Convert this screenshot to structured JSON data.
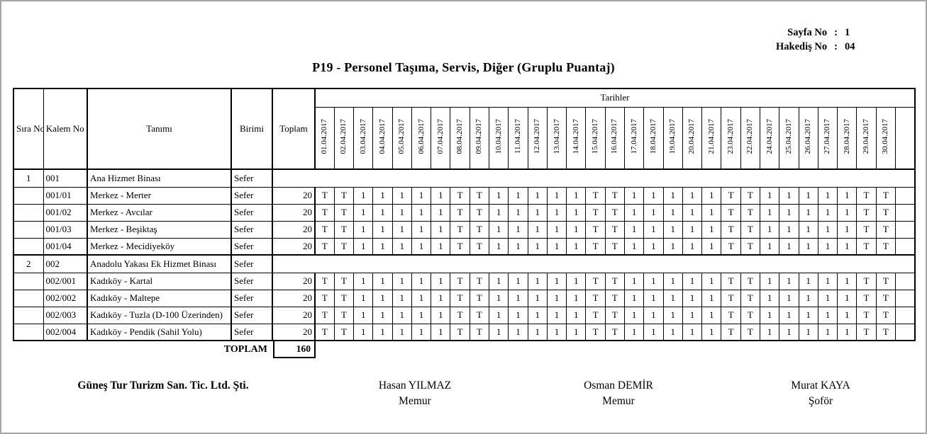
{
  "meta": {
    "sayfa_label": "Sayfa No",
    "hakedis_label": "Hakediş No",
    "separator": ":",
    "sayfa_value": "1",
    "hakedis_value": "04"
  },
  "title": "P19 - Personel Taşıma, Servis, Diğer (Gruplu Puantaj)",
  "table": {
    "headers": {
      "sira": "Sıra No",
      "kalem": "Kalem No",
      "tanim": "Tanımı",
      "birim": "Birimi",
      "toplam": "Toplam",
      "tarihler": "Tarihler"
    },
    "dates": [
      "01.04.2017",
      "02.04.2017",
      "03.04.2017",
      "04.04.2017",
      "05.04.2017",
      "06.04.2017",
      "07.04.2017",
      "08.04.2017",
      "09.04.2017",
      "10.04.2017",
      "11.04.2017",
      "12.04.2017",
      "13.04.2017",
      "14.04.2017",
      "15.04.2017",
      "16.04.2017",
      "17.04.2017",
      "18.04.2017",
      "19.04.2017",
      "20.04.2017",
      "21.04.2017",
      "23.04.2017",
      "22.04.2017",
      "24.04.2017",
      "25.04.2017",
      "26.04.2017",
      "27.04.2017",
      "28.04.2017",
      "29.04.2017",
      "30.04.2017"
    ],
    "empty_trailing_columns": 1,
    "rows": [
      {
        "group": true,
        "sira": "1",
        "kalem": "001",
        "tanim": "Ana Hizmet Binası",
        "birim": "Sefer",
        "toplam": ""
      },
      {
        "group": false,
        "sira": "",
        "kalem": "001/01",
        "tanim": "Merkez - Merter",
        "birim": "Sefer",
        "toplam": "20",
        "values": [
          "T",
          "T",
          "1",
          "1",
          "1",
          "1",
          "1",
          "T",
          "T",
          "1",
          "1",
          "1",
          "1",
          "1",
          "T",
          "T",
          "1",
          "1",
          "1",
          "1",
          "1",
          "T",
          "T",
          "1",
          "1",
          "1",
          "1",
          "1",
          "T",
          "T"
        ]
      },
      {
        "group": false,
        "sira": "",
        "kalem": "001/02",
        "tanim": "Merkez - Avcılar",
        "birim": "Sefer",
        "toplam": "20",
        "values": [
          "T",
          "T",
          "1",
          "1",
          "1",
          "1",
          "1",
          "T",
          "T",
          "1",
          "1",
          "1",
          "1",
          "1",
          "T",
          "T",
          "1",
          "1",
          "1",
          "1",
          "1",
          "T",
          "T",
          "1",
          "1",
          "1",
          "1",
          "1",
          "T",
          "T"
        ]
      },
      {
        "group": false,
        "sira": "",
        "kalem": "001/03",
        "tanim": "Merkez - Beşiktaş",
        "birim": "Sefer",
        "toplam": "20",
        "values": [
          "T",
          "T",
          "1",
          "1",
          "1",
          "1",
          "1",
          "T",
          "T",
          "1",
          "1",
          "1",
          "1",
          "1",
          "T",
          "T",
          "1",
          "1",
          "1",
          "1",
          "1",
          "T",
          "T",
          "1",
          "1",
          "1",
          "1",
          "1",
          "T",
          "T"
        ]
      },
      {
        "group": false,
        "sira": "",
        "kalem": "001/04",
        "tanim": "Merkez - Mecidiyeköy",
        "birim": "Sefer",
        "toplam": "20",
        "values": [
          "T",
          "T",
          "1",
          "1",
          "1",
          "1",
          "1",
          "T",
          "T",
          "1",
          "1",
          "1",
          "1",
          "1",
          "T",
          "T",
          "1",
          "1",
          "1",
          "1",
          "1",
          "T",
          "T",
          "1",
          "1",
          "1",
          "1",
          "1",
          "T",
          "T"
        ]
      },
      {
        "group": true,
        "sira": "2",
        "kalem": "002",
        "tanim": "Anadolu Yakası Ek Hizmet Binası",
        "birim": "Sefer",
        "toplam": ""
      },
      {
        "group": false,
        "sira": "",
        "kalem": "002/001",
        "tanim": "Kadıköy - Kartal",
        "birim": "Sefer",
        "toplam": "20",
        "values": [
          "T",
          "T",
          "1",
          "1",
          "1",
          "1",
          "1",
          "T",
          "T",
          "1",
          "1",
          "1",
          "1",
          "1",
          "T",
          "T",
          "1",
          "1",
          "1",
          "1",
          "1",
          "T",
          "T",
          "1",
          "1",
          "1",
          "1",
          "1",
          "T",
          "T"
        ]
      },
      {
        "group": false,
        "sira": "",
        "kalem": "002/002",
        "tanim": "Kadıköy - Maltepe",
        "birim": "Sefer",
        "toplam": "20",
        "values": [
          "T",
          "T",
          "1",
          "1",
          "1",
          "1",
          "1",
          "T",
          "T",
          "1",
          "1",
          "1",
          "1",
          "1",
          "T",
          "T",
          "1",
          "1",
          "1",
          "1",
          "1",
          "T",
          "T",
          "1",
          "1",
          "1",
          "1",
          "1",
          "T",
          "T"
        ]
      },
      {
        "group": false,
        "sira": "",
        "kalem": "002/003",
        "tanim": "Kadıköy - Tuzla (D-100 Üzerinden)",
        "birim": "Sefer",
        "toplam": "20",
        "values": [
          "T",
          "T",
          "1",
          "1",
          "1",
          "1",
          "1",
          "T",
          "T",
          "1",
          "1",
          "1",
          "1",
          "1",
          "T",
          "T",
          "1",
          "1",
          "1",
          "1",
          "1",
          "T",
          "T",
          "1",
          "1",
          "1",
          "1",
          "1",
          "T",
          "T"
        ]
      },
      {
        "group": false,
        "sira": "",
        "kalem": "002/004",
        "tanim": "Kadıköy - Pendik (Sahil Yolu)",
        "birim": "Sefer",
        "toplam": "20",
        "values": [
          "T",
          "T",
          "1",
          "1",
          "1",
          "1",
          "1",
          "T",
          "T",
          "1",
          "1",
          "1",
          "1",
          "1",
          "T",
          "T",
          "1",
          "1",
          "1",
          "1",
          "1",
          "T",
          "T",
          "1",
          "1",
          "1",
          "1",
          "1",
          "T",
          "T"
        ]
      }
    ],
    "toplam_label": "TOPLAM",
    "toplam_value": "160"
  },
  "footer": {
    "company": "Güneş Tur Turizm San. Tic. Ltd. Şti.",
    "signatures": [
      {
        "name": "Hasan YILMAZ",
        "role": "Memur"
      },
      {
        "name": "Osman DEMİR",
        "role": "Memur"
      },
      {
        "name": "Murat KAYA",
        "role": "Şoför"
      }
    ]
  }
}
